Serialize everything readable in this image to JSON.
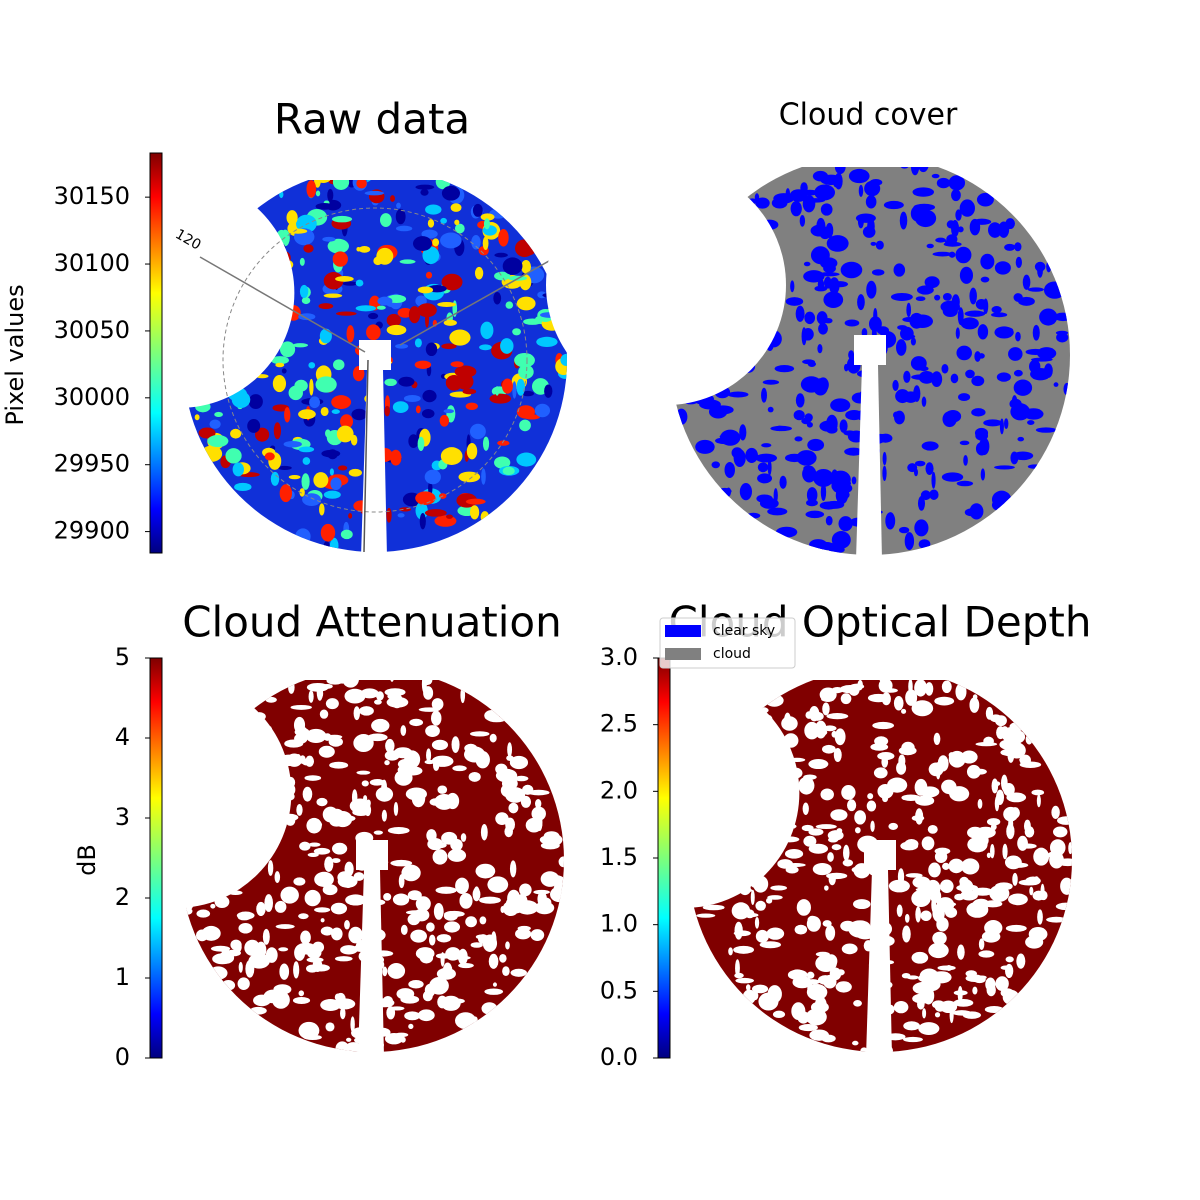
{
  "chart_data": [
    {
      "type": "image",
      "title": "Raw data",
      "cmap": "jet",
      "colorbar": {
        "label": "Pixel values",
        "lim": [
          29884,
          30183
        ],
        "ticks": [
          29900,
          29950,
          30000,
          30050,
          30100,
          30150
        ]
      },
      "annotations": [
        "120"
      ]
    },
    {
      "type": "image",
      "title": "Cloud cover",
      "series": [
        {
          "name": "clear sky",
          "color": "#0000ff"
        },
        {
          "name": "cloud",
          "color": "#808080"
        }
      ],
      "legend": "lower left"
    },
    {
      "type": "image",
      "title": "Cloud Attenuation",
      "cmap": "jet",
      "colorbar": {
        "label": "dB",
        "lim": [
          0,
          5
        ],
        "ticks": [
          0,
          1,
          2,
          3,
          4,
          5
        ]
      }
    },
    {
      "type": "image",
      "title": "Cloud Optical Depth",
      "cmap": "jet",
      "colorbar": {
        "lim": [
          0,
          3
        ],
        "ticks": [
          {
            "value": 0,
            "label": "0.0"
          },
          0.5,
          {
            "value": 1,
            "label": "1.0"
          },
          1.5,
          {
            "value": 2,
            "label": "2.0"
          },
          2.5,
          {
            "value": 3,
            "label": "3.0"
          }
        ]
      }
    }
  ]
}
